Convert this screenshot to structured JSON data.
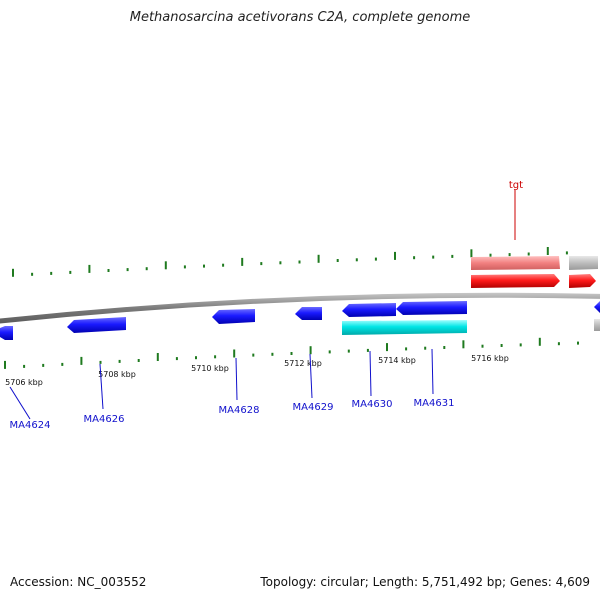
{
  "header": {
    "title": "Methanosarcina acetivorans C2A, complete genome"
  },
  "footer": {
    "accession": "Accession: NC_003552",
    "summary": "Topology: circular; Length: 5,751,492 bp; Genes: 4,609"
  },
  "map": {
    "scale_labels": [
      "5706 kbp",
      "5708 kbp",
      "5710 kbp",
      "5712 kbp",
      "5714 kbp",
      "5716 kbp"
    ],
    "gene_labels": [
      "MA4624",
      "MA4626",
      "MA4628",
      "MA4629",
      "MA4630",
      "MA4631"
    ],
    "trna_label": "tgt",
    "colors": {
      "backbone": "#8c8c8c",
      "cds_minus": "#1a1aff",
      "cds_highlight": "#00e5e5",
      "trna": "#ff1a1a",
      "trna_light": "#f28080",
      "other": "#bdbdbd",
      "ticks": "#1f7a1f",
      "gene_label": "#1010cc",
      "trna_text": "#cc0000"
    }
  }
}
